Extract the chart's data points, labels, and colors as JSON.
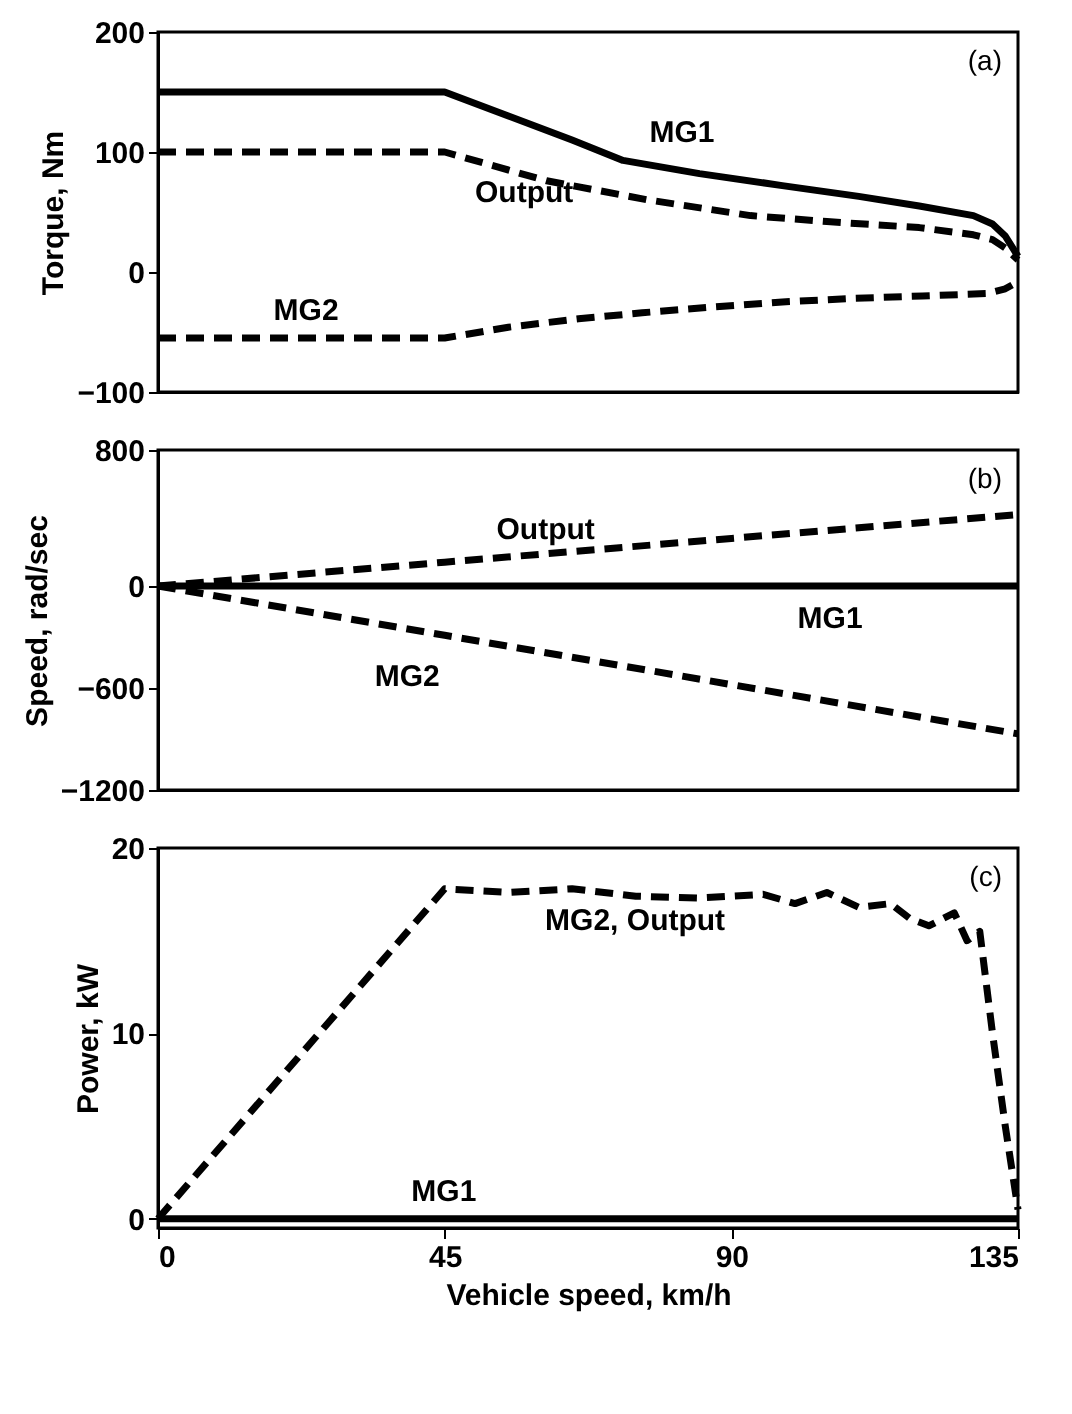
{
  "chart_data": [
    {
      "type": "line",
      "ylabel": "Torque, Nm",
      "xlim": [
        0,
        135
      ],
      "ylim": [
        -100,
        200
      ],
      "yticks": [
        -100,
        0,
        100,
        200
      ],
      "tick_labels": "y",
      "annotations": [
        "(a)",
        {
          "text": "MG1",
          "x": 74,
          "y": 93
        },
        {
          "text": "Output",
          "x": 46,
          "y": 97
        },
        {
          "text": "MG2",
          "x": 15,
          "y": -55
        }
      ],
      "series": [
        {
          "color": "#000000",
          "line_style": "solid",
          "x": [
            0,
            45,
            55,
            65,
            73,
            85,
            98,
            110,
            119.5,
            128,
            131,
            133,
            135
          ],
          "values": [
            150,
            150,
            130,
            110,
            93,
            82,
            72,
            63,
            55,
            47,
            40,
            30,
            13
          ]
        },
        {
          "color": "#000000",
          "line_style": "dashed",
          "x": [
            0,
            45,
            53,
            61,
            77,
            93,
            105,
            119.5,
            128,
            131,
            133,
            135
          ],
          "values": [
            100,
            100,
            88,
            76,
            60,
            47,
            42,
            37,
            31,
            27,
            20,
            10
          ]
        },
        {
          "color": "#000000",
          "line_style": "dashed",
          "x": [
            0,
            45,
            55,
            66,
            76,
            87.5,
            98,
            109,
            120,
            130,
            133,
            135
          ],
          "values": [
            -55,
            -55,
            -46,
            -39,
            -34,
            -29,
            -25,
            -22,
            -20,
            -18,
            -14,
            -8
          ]
        }
      ]
    },
    {
      "type": "line",
      "ylabel": "Speed, rad/sec",
      "xlim": [
        0,
        135
      ],
      "ylim": [
        -1200,
        800
      ],
      "yticks": [
        -1200,
        -600,
        0,
        800
      ],
      "tick_labels": "y",
      "annotations": [
        "(b)",
        {
          "text": "Output",
          "x": 50,
          "y": 150
        },
        {
          "text": "MG1",
          "x": 96,
          "y": 0
        },
        {
          "text": "MG2",
          "x": 48,
          "y": -315
        }
      ],
      "series": [
        {
          "color": "#000000",
          "line_style": "solid",
          "x": [
            0,
            135
          ],
          "values": [
            0,
            0
          ]
        },
        {
          "color": "#000000",
          "line_style": "dashed",
          "x": [
            0,
            45,
            90,
            135
          ],
          "values": [
            0,
            140,
            280,
            420
          ]
        },
        {
          "color": "#000000",
          "line_style": "dashed",
          "x": [
            0,
            45,
            90,
            135
          ],
          "values": [
            0,
            -290,
            -580,
            -870
          ]
        }
      ]
    },
    {
      "type": "line",
      "ylabel": "Power, kW",
      "xlabel": "Vehicle speed, km/h",
      "xlim": [
        0,
        135
      ],
      "xticks": [
        0,
        45,
        90,
        135
      ],
      "ylim": [
        -0.5,
        20
      ],
      "yticks": [
        0,
        10,
        20
      ],
      "annotations": [
        "(c)",
        {
          "text": "MG2, Output",
          "x": 57,
          "y": 17.6
        },
        {
          "text": "MG1",
          "x": 36,
          "y": 0
        }
      ],
      "series": [
        {
          "color": "#000000",
          "line_style": "solid",
          "x": [
            0,
            135
          ],
          "values": [
            0,
            0
          ]
        },
        {
          "color": "#000000",
          "line_style": "dashed",
          "x": [
            0,
            45,
            55,
            65,
            75,
            85,
            95,
            100,
            105,
            110,
            115,
            118,
            121,
            125,
            127,
            129,
            131,
            133,
            135
          ],
          "values": [
            0,
            17.8,
            17.6,
            17.8,
            17.4,
            17.3,
            17.5,
            17.0,
            17.6,
            16.8,
            17.0,
            16.2,
            15.8,
            16.5,
            15.0,
            15.5,
            10,
            5,
            0.5
          ]
        }
      ]
    }
  ]
}
